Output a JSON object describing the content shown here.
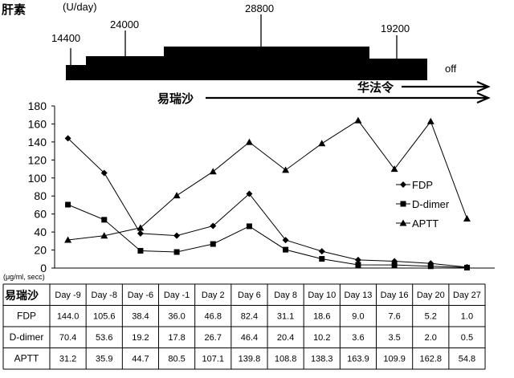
{
  "heparin": {
    "label": "肝素",
    "unit": "(U/day)",
    "dose_labels": [
      "14400",
      "24000",
      "28800",
      "19200"
    ],
    "off_label": "off"
  },
  "drug_arrows": {
    "argatroban_label": "易瑞沙",
    "warfarin_label": "华法令"
  },
  "chart_data": {
    "type": "line",
    "title": "",
    "xlabel": "",
    "ylabel": "(μg/ml, secc)",
    "ylim": [
      0,
      180
    ],
    "yticks": [
      0,
      20,
      40,
      60,
      80,
      100,
      120,
      140,
      160,
      180
    ],
    "grid": false,
    "legend_position": "right",
    "categories": [
      "Day -9",
      "Day -8",
      "Day -6",
      "Day -1",
      "Day 2",
      "Day 6",
      "Day 8",
      "Day 10",
      "Day 13",
      "Day 16",
      "Day 20",
      "Day 27"
    ],
    "series": [
      {
        "name": "FDP",
        "marker": "diamond",
        "values": [
          144.0,
          105.6,
          38.4,
          36.0,
          46.8,
          82.4,
          31.1,
          18.6,
          9.0,
          7.6,
          5.2,
          1.0
        ]
      },
      {
        "name": "D-dimer",
        "marker": "square",
        "values": [
          70.4,
          53.6,
          19.2,
          17.8,
          26.7,
          46.4,
          20.4,
          10.2,
          3.6,
          3.5,
          2.0,
          0.5
        ]
      },
      {
        "name": "APTT",
        "marker": "triangle",
        "values": [
          31.2,
          35.9,
          44.7,
          80.5,
          107.1,
          139.8,
          108.8,
          138.3,
          163.9,
          109.9,
          162.8,
          54.8
        ]
      }
    ]
  },
  "table": {
    "corner_label": "易瑞沙",
    "value_strings": [
      [
        "144.0",
        "105.6",
        "38.4",
        "36.0",
        "46.8",
        "82.4",
        "31.1",
        "18.6",
        "9.0",
        "7.6",
        "5.2",
        "1.0"
      ],
      [
        "70.4",
        "53.6",
        "19.2",
        "17.8",
        "26.7",
        "46.4",
        "20.4",
        "10.2",
        "3.6",
        "3.5",
        "2.0",
        "0.5"
      ],
      [
        "31.2",
        "35.9",
        "44.7",
        "80.5",
        "107.1",
        "139.8",
        "108.8",
        "138.3",
        "163.9",
        "109.9",
        "162.8",
        "54.8"
      ]
    ]
  }
}
